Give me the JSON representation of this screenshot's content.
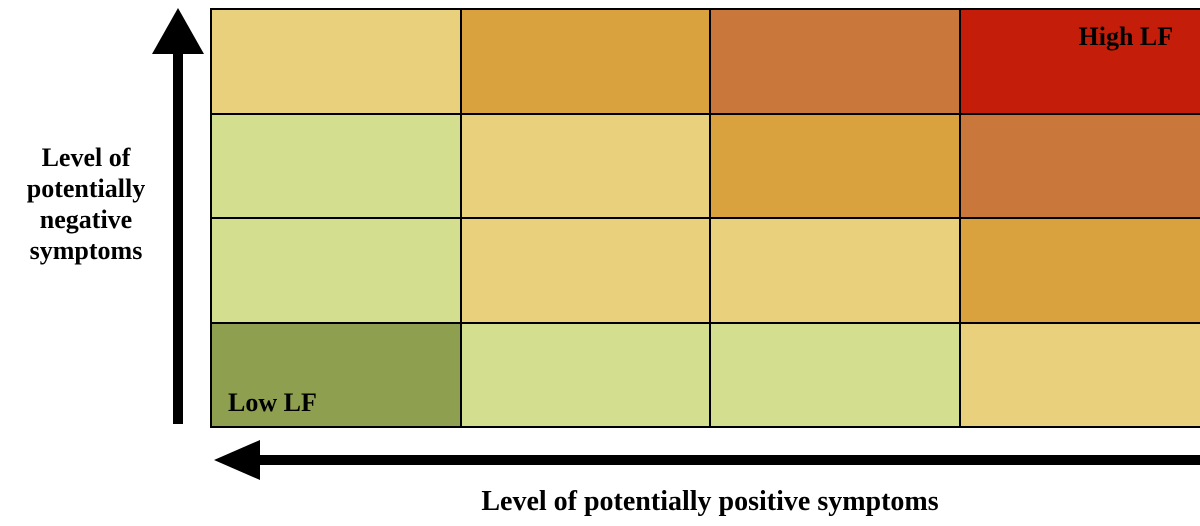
{
  "axes": {
    "y_label_lines": [
      "Level of",
      "potentially",
      "negative",
      "symptoms"
    ],
    "x_label": "Level of potentially positive symptoms"
  },
  "grid": {
    "rows": [
      [
        "#E8D07C",
        "#D9A23E",
        "#C9773A",
        "#C41E0A"
      ],
      [
        "#D3DF8F",
        "#E8D07C",
        "#D9A23E",
        "#C9773A"
      ],
      [
        "#D3DF8F",
        "#E8D07C",
        "#E8D07C",
        "#D9A23E"
      ],
      [
        "#8EA04F",
        "#D3DF8F",
        "#D3DF8F",
        "#E8D07C"
      ]
    ],
    "high_label": "High LF",
    "low_label": "Low LF"
  }
}
